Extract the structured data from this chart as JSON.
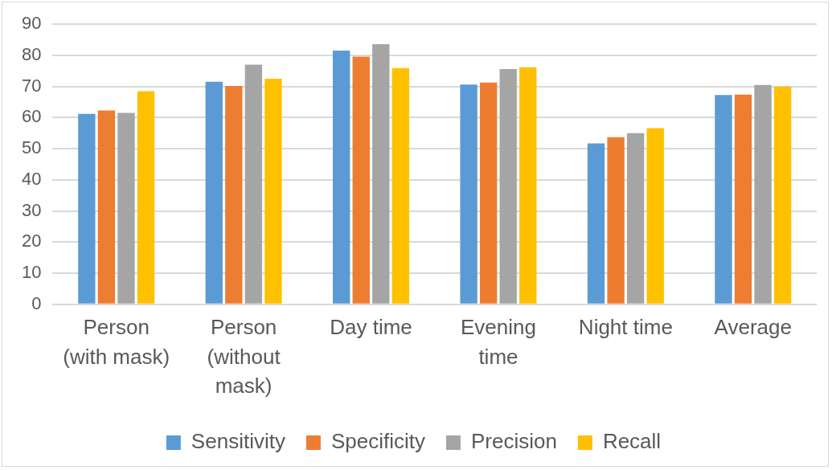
{
  "chart_data": {
    "type": "bar",
    "categories": [
      "Person (with mask)",
      "Person (without mask)",
      "Day time",
      "Evening time",
      "Night time",
      "Average"
    ],
    "series": [
      {
        "name": "Sensitivity",
        "color": "#5b9bd5",
        "values": [
          61.2,
          71.5,
          81.5,
          70.6,
          51.7,
          67.3
        ]
      },
      {
        "name": "Specificity",
        "color": "#ed7d31",
        "values": [
          62.3,
          70.2,
          79.6,
          71.3,
          53.7,
          67.4
        ]
      },
      {
        "name": "Precision",
        "color": "#a5a5a5",
        "values": [
          61.5,
          77,
          83.6,
          75.6,
          55,
          70.5
        ]
      },
      {
        "name": "Recall",
        "color": "#ffc000",
        "values": [
          68.5,
          72.5,
          75.9,
          76.2,
          56.6,
          70
        ]
      }
    ],
    "ylim": [
      0,
      90
    ],
    "yticks": [
      0,
      10,
      20,
      30,
      40,
      50,
      60,
      70,
      80,
      90
    ],
    "grid": "y",
    "legend": "bottom"
  }
}
